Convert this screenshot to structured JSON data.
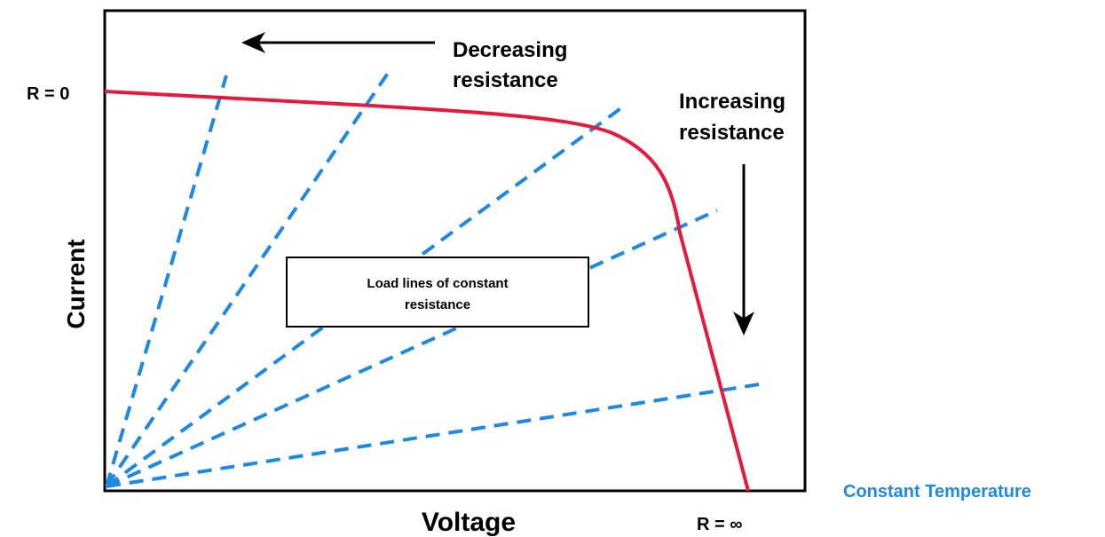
{
  "diagram": {
    "axis_labels": {
      "y": "Current",
      "x": "Voltage"
    },
    "annotations": {
      "r_zero": "R = 0",
      "r_infinity": "R = ∞",
      "decreasing": [
        "Decreasing",
        "resistance"
      ],
      "increasing": [
        "Increasing",
        "resistance"
      ],
      "load_lines_box": [
        "Load lines of constant",
        "resistance"
      ],
      "condition": "Constant Temperature"
    }
  }
}
